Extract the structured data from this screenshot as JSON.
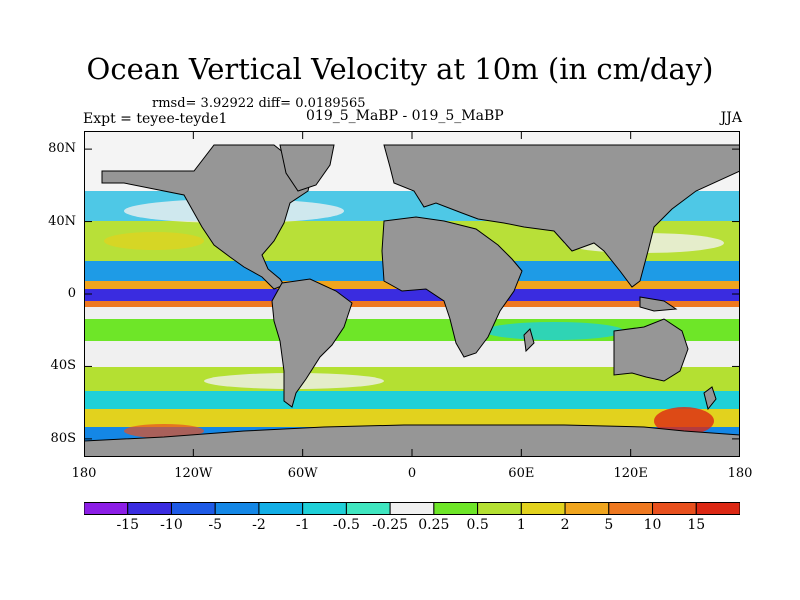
{
  "title": "Ocean Vertical Velocity at 10m (in cm/day)",
  "rmsd_line": "rmsd= 3.92922 diff= 0.0189565",
  "left_label": "Expt = teyee-teyde1",
  "center_label": "019_5_MaBP - 019_5_MaBP",
  "right_label": "JJA",
  "map": {
    "lon_range": [
      -180,
      180
    ],
    "lat_range": [
      -90,
      90
    ],
    "land_color": "#969696"
  },
  "y_ticks": [
    "80N",
    "40N",
    "0",
    "40S",
    "80S"
  ],
  "y_tick_values": [
    80,
    40,
    0,
    -40,
    -80
  ],
  "x_ticks": [
    "180",
    "120W",
    "60W",
    "0",
    "60E",
    "120E",
    "180"
  ],
  "x_tick_values": [
    -180,
    -120,
    -60,
    0,
    60,
    120,
    180
  ],
  "colorbar": {
    "labels": [
      "-15",
      "-10",
      "-5",
      "-2",
      "-1",
      "-0.5",
      "-0.25",
      "0.25",
      "0.5",
      "1",
      "2",
      "5",
      "10",
      "15"
    ],
    "colors": [
      "#8c1ee6",
      "#3a2ce0",
      "#1e5ae6",
      "#1487e6",
      "#12aee6",
      "#1fd0d8",
      "#3fe6c0",
      "#f0f0f0",
      "#6ee628",
      "#b4e032",
      "#e2d21e",
      "#f0a51e",
      "#ee7820",
      "#e8501e",
      "#dc2814"
    ]
  }
}
